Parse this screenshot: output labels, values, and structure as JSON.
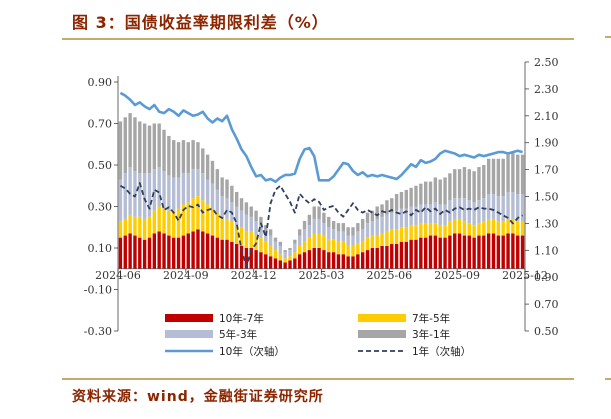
{
  "header": {
    "title": "图 3：国债收益率期限利差（%）"
  },
  "footer": {
    "source": "资料来源：wind，金融街证券研究所"
  },
  "chart_data": {
    "type": "bar",
    "stacked": true,
    "x_ticks": [
      "2024-06",
      "2024-09",
      "2024-12",
      "2025-03",
      "2025-06",
      "2025-09",
      "2025-12"
    ],
    "left_axis": {
      "ylim": [
        -0.3,
        0.9
      ],
      "ticks": [
        "0.90",
        "0.70",
        "0.50",
        "0.30",
        "0.10",
        "-0.10",
        "-0.30"
      ]
    },
    "right_axis": {
      "ylim": [
        0.5,
        2.5
      ],
      "ticks": [
        "2.50",
        "2.30",
        "2.10",
        "1.90",
        "1.70",
        "1.50",
        "1.30",
        "1.10",
        "0.90",
        "0.70",
        "0.50"
      ]
    },
    "grid": false,
    "legend_position": "bottom",
    "colors": {
      "s10_7": "#C00000",
      "s7_5": "#FFCC00",
      "s5_3": "#B4BDD3",
      "s3_1": "#A6A6A6",
      "ten_year": "#5B9BD5",
      "one_year": "#2F3F5F"
    },
    "series": [
      {
        "name": "10年-7年",
        "key": "s10_7",
        "values": [
          0.15,
          0.16,
          0.17,
          0.16,
          0.15,
          0.14,
          0.15,
          0.17,
          0.18,
          0.17,
          0.16,
          0.15,
          0.15,
          0.16,
          0.17,
          0.18,
          0.19,
          0.18,
          0.17,
          0.16,
          0.15,
          0.14,
          0.14,
          0.13,
          0.12,
          0.11,
          0.1,
          0.1,
          0.09,
          0.08,
          0.07,
          0.06,
          0.05,
          0.04,
          0.03,
          0.04,
          0.05,
          0.07,
          0.08,
          0.09,
          0.1,
          0.1,
          0.09,
          0.08,
          0.08,
          0.07,
          0.07,
          0.06,
          0.06,
          0.07,
          0.08,
          0.09,
          0.1,
          0.1,
          0.11,
          0.11,
          0.12,
          0.12,
          0.13,
          0.13,
          0.14,
          0.14,
          0.15,
          0.15,
          0.16,
          0.16,
          0.15,
          0.15,
          0.16,
          0.17,
          0.17,
          0.16,
          0.16,
          0.15,
          0.16,
          0.16,
          0.17,
          0.17,
          0.16,
          0.16,
          0.17,
          0.17,
          0.16,
          0.16
        ]
      },
      {
        "name": "7年-5年",
        "key": "s7_5",
        "values": [
          0.08,
          0.08,
          0.09,
          0.09,
          0.1,
          0.1,
          0.1,
          0.11,
          0.12,
          0.12,
          0.12,
          0.13,
          0.14,
          0.15,
          0.15,
          0.16,
          0.16,
          0.15,
          0.14,
          0.13,
          0.12,
          0.11,
          0.1,
          0.1,
          0.09,
          0.09,
          0.08,
          0.08,
          0.07,
          0.07,
          0.06,
          0.05,
          0.04,
          0.03,
          0.02,
          0.02,
          0.03,
          0.04,
          0.05,
          0.06,
          0.07,
          0.07,
          0.07,
          0.06,
          0.06,
          0.06,
          0.06,
          0.05,
          0.05,
          0.05,
          0.05,
          0.06,
          0.06,
          0.06,
          0.06,
          0.07,
          0.07,
          0.07,
          0.07,
          0.07,
          0.07,
          0.07,
          0.07,
          0.07,
          0.06,
          0.06,
          0.06,
          0.06,
          0.07,
          0.07,
          0.07,
          0.07,
          0.06,
          0.06,
          0.06,
          0.07,
          0.07,
          0.07,
          0.07,
          0.07,
          0.07,
          0.07,
          0.07,
          0.07
        ]
      },
      {
        "name": "5年-3年",
        "key": "s5_3",
        "values": [
          0.2,
          0.22,
          0.23,
          0.22,
          0.21,
          0.22,
          0.21,
          0.2,
          0.19,
          0.18,
          0.17,
          0.16,
          0.15,
          0.15,
          0.14,
          0.14,
          0.13,
          0.13,
          0.12,
          0.12,
          0.11,
          0.1,
          0.1,
          0.09,
          0.09,
          0.08,
          0.08,
          0.07,
          0.07,
          0.06,
          0.05,
          0.05,
          0.04,
          0.04,
          0.03,
          0.03,
          0.04,
          0.05,
          0.06,
          0.06,
          0.07,
          0.07,
          0.06,
          0.06,
          0.05,
          0.05,
          0.05,
          0.05,
          0.05,
          0.06,
          0.06,
          0.07,
          0.07,
          0.08,
          0.08,
          0.08,
          0.08,
          0.09,
          0.09,
          0.09,
          0.09,
          0.09,
          0.09,
          0.09,
          0.09,
          0.1,
          0.1,
          0.1,
          0.1,
          0.1,
          0.1,
          0.11,
          0.11,
          0.11,
          0.11,
          0.11,
          0.12,
          0.12,
          0.12,
          0.12,
          0.13,
          0.13,
          0.13,
          0.13
        ]
      },
      {
        "name": "3年-1年",
        "key": "s3_1",
        "values": [
          0.28,
          0.27,
          0.26,
          0.26,
          0.25,
          0.24,
          0.23,
          0.22,
          0.21,
          0.2,
          0.19,
          0.18,
          0.17,
          0.16,
          0.15,
          0.14,
          0.13,
          0.12,
          0.12,
          0.11,
          0.1,
          0.09,
          0.09,
          0.08,
          0.07,
          0.06,
          0.06,
          0.05,
          0.05,
          0.04,
          0.03,
          0.03,
          0.02,
          0.02,
          0.01,
          0.01,
          0.02,
          0.03,
          0.04,
          0.05,
          0.06,
          0.06,
          0.05,
          0.05,
          0.04,
          0.04,
          0.04,
          0.04,
          0.04,
          0.04,
          0.05,
          0.05,
          0.05,
          0.06,
          0.06,
          0.07,
          0.07,
          0.08,
          0.08,
          0.09,
          0.09,
          0.1,
          0.1,
          0.11,
          0.11,
          0.12,
          0.12,
          0.13,
          0.13,
          0.14,
          0.14,
          0.15,
          0.15,
          0.15,
          0.16,
          0.16,
          0.17,
          0.17,
          0.18,
          0.18,
          0.18,
          0.19,
          0.19,
          0.19
        ]
      },
      {
        "name": "10年（次轴）",
        "key": "ten_year",
        "type": "line",
        "axis": "right",
        "values": [
          2.27,
          2.25,
          2.22,
          2.18,
          2.2,
          2.17,
          2.15,
          2.18,
          2.13,
          2.12,
          2.15,
          2.13,
          2.1,
          2.14,
          2.12,
          2.1,
          2.11,
          2.13,
          2.08,
          2.05,
          2.08,
          2.06,
          2.1,
          2.0,
          1.93,
          1.85,
          1.8,
          1.72,
          1.65,
          1.66,
          1.62,
          1.63,
          1.61,
          1.64,
          1.66,
          1.66,
          1.67,
          1.78,
          1.85,
          1.86,
          1.8,
          1.62,
          1.62,
          1.62,
          1.65,
          1.7,
          1.75,
          1.74,
          1.69,
          1.66,
          1.68,
          1.65,
          1.66,
          1.65,
          1.66,
          1.65,
          1.64,
          1.63,
          1.66,
          1.7,
          1.74,
          1.72,
          1.77,
          1.75,
          1.76,
          1.78,
          1.82,
          1.84,
          1.83,
          1.82,
          1.8,
          1.81,
          1.8,
          1.79,
          1.81,
          1.8,
          1.81,
          1.82,
          1.83,
          1.83,
          1.82,
          1.83,
          1.84,
          1.83
        ]
      },
      {
        "name": "1年（次轴）",
        "key": "one_year",
        "type": "line",
        "dashed": true,
        "axis": "right",
        "values": [
          1.58,
          1.56,
          1.52,
          1.5,
          1.6,
          1.48,
          1.41,
          1.55,
          1.53,
          1.4,
          1.42,
          1.38,
          1.32,
          1.4,
          1.43,
          1.42,
          1.44,
          1.38,
          1.4,
          1.41,
          1.36,
          1.34,
          1.4,
          1.38,
          1.3,
          1.1,
          0.98,
          1.1,
          1.15,
          1.3,
          1.2,
          1.45,
          1.55,
          1.58,
          1.52,
          1.46,
          1.38,
          1.52,
          1.48,
          1.45,
          1.48,
          1.46,
          1.4,
          1.42,
          1.43,
          1.38,
          1.35,
          1.4,
          1.45,
          1.4,
          1.38,
          1.4,
          1.38,
          1.36,
          1.39,
          1.38,
          1.4,
          1.38,
          1.37,
          1.39,
          1.36,
          1.4,
          1.38,
          1.42,
          1.39,
          1.41,
          1.37,
          1.4,
          1.38,
          1.41,
          1.42,
          1.4,
          1.41,
          1.4,
          1.42,
          1.41,
          1.41,
          1.4,
          1.38,
          1.36,
          1.34,
          1.3,
          1.34,
          1.36
        ]
      }
    ]
  }
}
